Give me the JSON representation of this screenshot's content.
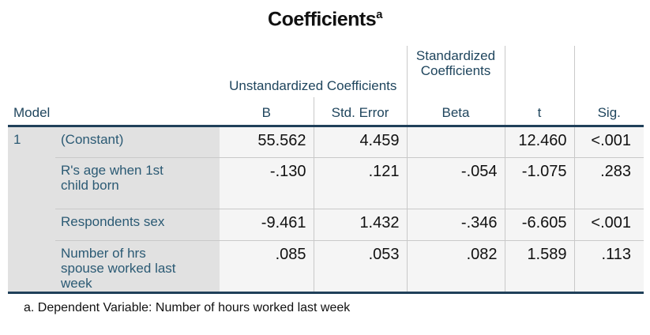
{
  "chart_data": {
    "type": "table",
    "title": "Coefficients",
    "title_superscript": "a",
    "headers": {
      "model": "Model",
      "group_unstandardized": "Unstandardized Coefficients",
      "group_standardized": "Standardized Coefficients",
      "b": "B",
      "std_error": "Std. Error",
      "beta": "Beta",
      "t": "t",
      "sig": "Sig."
    },
    "model_number": "1",
    "rows": [
      {
        "label": "(Constant)",
        "b": "55.562",
        "std_error": "4.459",
        "beta": "",
        "t": "12.460",
        "sig": "<.001"
      },
      {
        "label": "R's age when 1st child born",
        "b": "-.130",
        "std_error": ".121",
        "beta": "-.054",
        "t": "-1.075",
        "sig": ".283"
      },
      {
        "label": "Respondents sex",
        "b": "-9.461",
        "std_error": "1.432",
        "beta": "-.346",
        "t": "-6.605",
        "sig": "<.001"
      },
      {
        "label": "Number of hrs spouse worked last week",
        "b": ".085",
        "std_error": ".053",
        "beta": ".082",
        "t": "1.589",
        "sig": ".113"
      }
    ],
    "footnote": "a. Dependent Variable: Number of hours worked last week"
  },
  "colors": {
    "header_text": "#20465e",
    "row_label_text": "#2b5a74",
    "value_text": "#111111",
    "thick_rule": "#20405a",
    "light_rule": "#c9c9c9",
    "label_column_bg": "#e1e1e1",
    "data_cell_bg": "#f5f5f5",
    "page_bg": "#ffffff"
  }
}
